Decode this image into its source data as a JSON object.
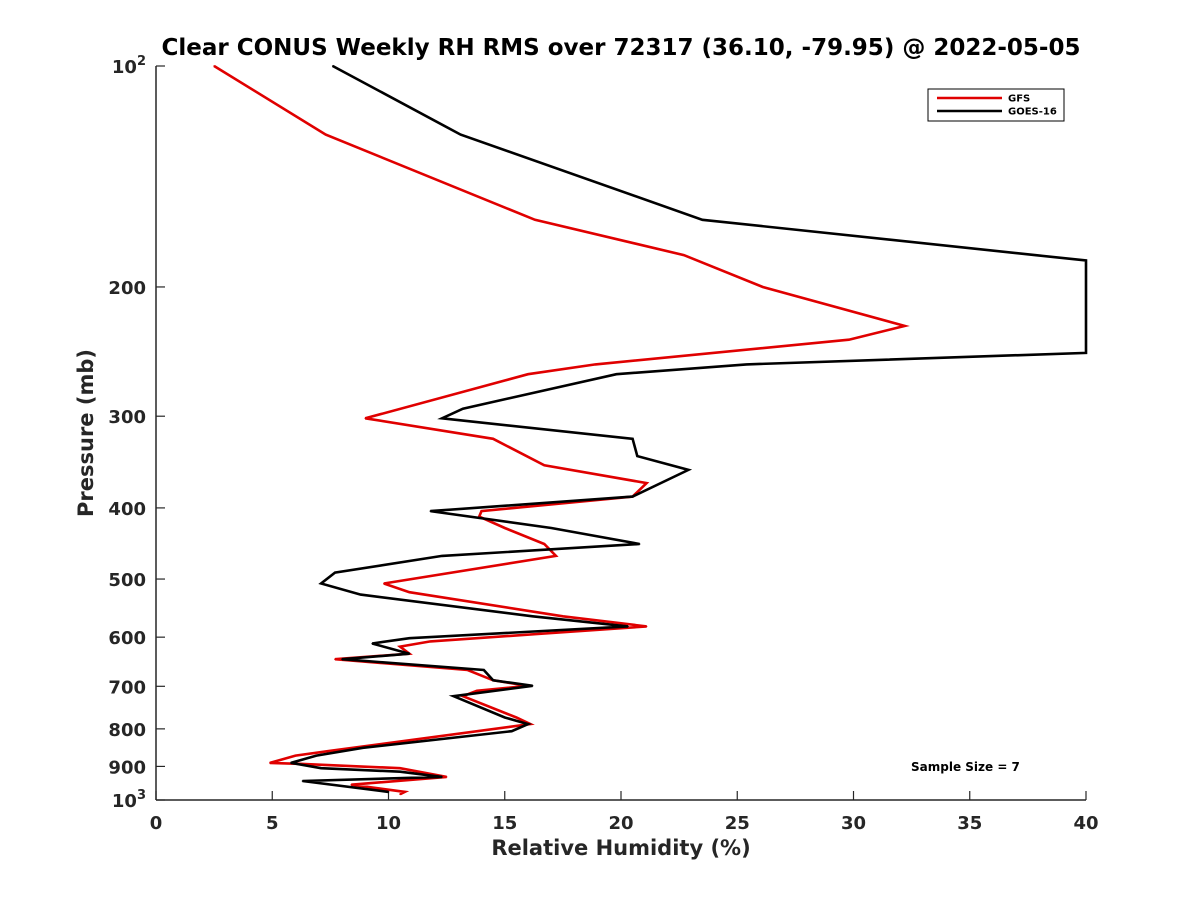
{
  "chart_data": {
    "type": "line",
    "title": "Clear CONUS Weekly RH RMS over 72317 (36.10, -79.95) @ 2022-05-05",
    "xlabel": "Relative Humidity (%)",
    "ylabel": "Pressure (mb)",
    "xlim": [
      0,
      40
    ],
    "ylim": [
      100,
      1000
    ],
    "y_scale": "log",
    "y_reversed": true,
    "x_ticks": [
      0,
      5,
      10,
      15,
      20,
      25,
      30,
      35,
      40
    ],
    "y_ticks": [
      {
        "value": 100,
        "label": "10",
        "sup": "2"
      },
      {
        "value": 200,
        "label": "200",
        "sup": ""
      },
      {
        "value": 300,
        "label": "300",
        "sup": ""
      },
      {
        "value": 400,
        "label": "400",
        "sup": ""
      },
      {
        "value": 500,
        "label": "500",
        "sup": ""
      },
      {
        "value": 600,
        "label": "600",
        "sup": ""
      },
      {
        "value": 700,
        "label": "700",
        "sup": ""
      },
      {
        "value": 800,
        "label": "800",
        "sup": ""
      },
      {
        "value": 900,
        "label": "900",
        "sup": ""
      },
      {
        "value": 1000,
        "label": "10",
        "sup": "3"
      }
    ],
    "grid": false,
    "legend_position": "top-right",
    "annotation": "Sample Size = 7",
    "series": [
      {
        "name": "GFS",
        "color": "#e00000",
        "points": [
          [
            2.5,
            100
          ],
          [
            7.3,
            124
          ],
          [
            16.3,
            162
          ],
          [
            22.7,
            181
          ],
          [
            26.1,
            200
          ],
          [
            32.2,
            226
          ],
          [
            29.8,
            236
          ],
          [
            18.9,
            255
          ],
          [
            16.0,
            263
          ],
          [
            9.0,
            302
          ],
          [
            14.5,
            322
          ],
          [
            16.7,
            350
          ],
          [
            21.1,
            370
          ],
          [
            20.5,
            386
          ],
          [
            14.0,
            404
          ],
          [
            13.9,
            411
          ],
          [
            15.0,
            426
          ],
          [
            16.7,
            448
          ],
          [
            17.2,
            465
          ],
          [
            9.8,
            507
          ],
          [
            10.9,
            521
          ],
          [
            17.5,
            562
          ],
          [
            21.1,
            580
          ],
          [
            11.8,
            608
          ],
          [
            10.5,
            618
          ],
          [
            10.9,
            632
          ],
          [
            7.7,
            643
          ],
          [
            13.4,
            665
          ],
          [
            14.5,
            687
          ],
          [
            16.0,
            699
          ],
          [
            13.8,
            710
          ],
          [
            13.2,
            722
          ],
          [
            15.5,
            772
          ],
          [
            16.1,
            788
          ],
          [
            7.5,
            857
          ],
          [
            6.0,
            870
          ],
          [
            4.9,
            890
          ],
          [
            6.3,
            893
          ],
          [
            10.5,
            905
          ],
          [
            12.5,
            930
          ],
          [
            8.4,
            953
          ],
          [
            10.7,
            975
          ],
          [
            10.5,
            982
          ]
        ]
      },
      {
        "name": "GOES-16",
        "color": "#000000",
        "points": [
          [
            7.6,
            100
          ],
          [
            13.1,
            124
          ],
          [
            23.5,
            162
          ],
          [
            37.8,
            181
          ],
          [
            40.0,
            184
          ],
          [
            40.0,
            246
          ],
          [
            25.4,
            255
          ],
          [
            19.8,
            263
          ],
          [
            13.2,
            293
          ],
          [
            12.3,
            302
          ],
          [
            20.5,
            322
          ],
          [
            20.7,
            340
          ],
          [
            22.9,
            355
          ],
          [
            20.5,
            386
          ],
          [
            11.8,
            404
          ],
          [
            17.0,
            426
          ],
          [
            20.8,
            448
          ],
          [
            12.3,
            465
          ],
          [
            7.7,
            490
          ],
          [
            7.1,
            507
          ],
          [
            8.8,
            525
          ],
          [
            16.2,
            562
          ],
          [
            20.3,
            580
          ],
          [
            10.9,
            602
          ],
          [
            9.3,
            612
          ],
          [
            10.9,
            632
          ],
          [
            8.0,
            643
          ],
          [
            14.1,
            665
          ],
          [
            14.5,
            687
          ],
          [
            16.2,
            699
          ],
          [
            12.8,
            722
          ],
          [
            15.0,
            772
          ],
          [
            16.0,
            788
          ],
          [
            15.3,
            806
          ],
          [
            8.9,
            849
          ],
          [
            6.9,
            870
          ],
          [
            5.8,
            890
          ],
          [
            7.1,
            905
          ],
          [
            10.5,
            915
          ],
          [
            12.3,
            930
          ],
          [
            6.3,
            942
          ],
          [
            10.0,
            975
          ]
        ]
      }
    ]
  }
}
